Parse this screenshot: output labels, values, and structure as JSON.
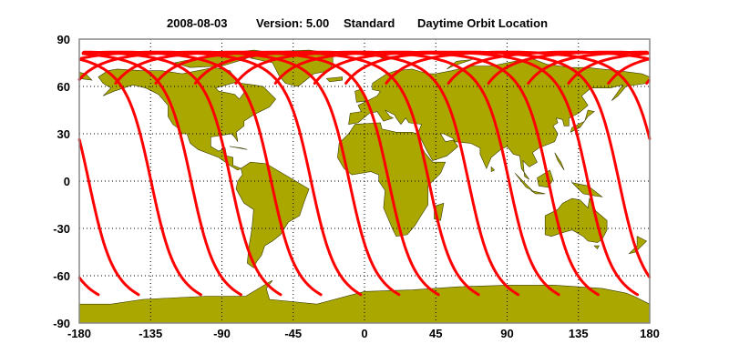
{
  "title": {
    "date": "2008-08-03",
    "version": "Version: 5.00",
    "product": "Standard",
    "description": "Daytime Orbit Location"
  },
  "map": {
    "projection": "equirectangular",
    "lon_range": [
      -180,
      180
    ],
    "lat_range": [
      -90,
      90
    ],
    "grid": true,
    "land_color": "#aaa800",
    "track_color": "#ff0000",
    "x_ticks": [
      "-180",
      "-135",
      "-90",
      "-45",
      "0",
      "45",
      "90",
      "135",
      "180"
    ],
    "y_ticks": [
      "90",
      "60",
      "30",
      "0",
      "-30",
      "-60",
      "-90"
    ]
  },
  "orbit_tracks": {
    "south_end_latitude": -72,
    "north_end_latitude": 62,
    "south_end_longitudes": [
      -168,
      -142.6,
      -103.3,
      -78,
      -52.9,
      -27.5,
      -2.3,
      21.8,
      46.7,
      72,
      97,
      122.6,
      147.5,
      172.3
    ]
  }
}
